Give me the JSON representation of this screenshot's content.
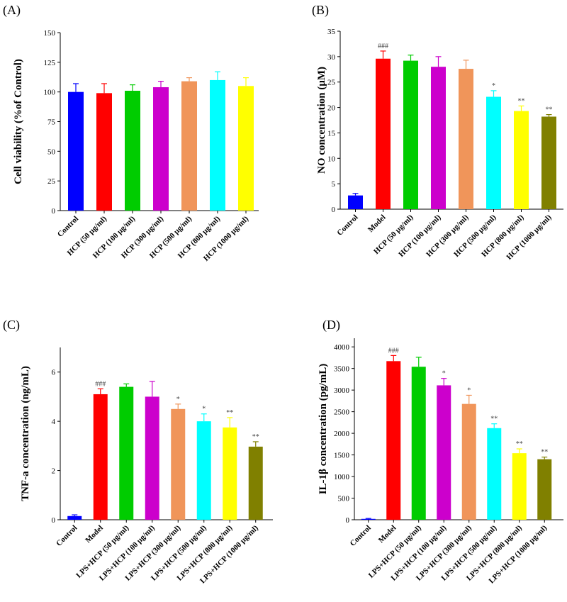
{
  "chart_data": [
    {
      "panel": "(A)",
      "type": "bar",
      "ylabel": "Cell viability (%of Control)",
      "ylim": [
        0,
        150
      ],
      "yticks": [
        0,
        25,
        50,
        75,
        100,
        125,
        150
      ],
      "categories": [
        "Control",
        "HCP (50 μg/ml)",
        "HCP (100 μg/ml)",
        "HCP (300 μg/ml)",
        "HCP (500 μg/ml)",
        "HCP (800 μg/ml)",
        "HCP (1000 μg/ml)"
      ],
      "values": [
        100,
        99,
        101,
        104,
        109,
        110,
        105
      ],
      "errors": [
        7,
        8,
        5,
        5,
        3,
        7,
        7
      ],
      "annotations": [
        "",
        "",
        "",
        "",
        "",
        "",
        ""
      ],
      "colors": [
        "#0000ff",
        "#ff0000",
        "#00cc00",
        "#cc00cc",
        "#f0955a",
        "#00ffff",
        "#ffff00"
      ]
    },
    {
      "panel": "(B)",
      "type": "bar",
      "ylabel": "NO concentration (μM)",
      "ylim": [
        0,
        35
      ],
      "yticks": [
        0,
        5,
        10,
        15,
        20,
        25,
        30,
        35
      ],
      "categories": [
        "Control",
        "Model",
        "HCP (50 μg/ml)",
        "HCP (100 μg/ml)",
        "HCP (300 μg/ml)",
        "HCP (500 μg/ml)",
        "HCP (800 μg/ml)",
        "HCP (1000 μg/ml)"
      ],
      "values": [
        2.7,
        29.6,
        29.2,
        28.0,
        27.6,
        22.1,
        19.3,
        18.2
      ],
      "errors": [
        0.4,
        1.5,
        1.1,
        2.0,
        1.7,
        1.2,
        1.0,
        0.4
      ],
      "annotations": [
        "",
        "###",
        "",
        "",
        "",
        "*",
        "**",
        "**"
      ],
      "colors": [
        "#0000ff",
        "#ff0000",
        "#00cc00",
        "#cc00cc",
        "#f0955a",
        "#00ffff",
        "#ffff00",
        "#808000"
      ]
    },
    {
      "panel": "(C)",
      "type": "bar",
      "ylabel": "TNF-a concentration (ng/mL)",
      "ylim": [
        0,
        7
      ],
      "yticks": [
        0,
        2,
        4,
        6
      ],
      "categories": [
        "Control",
        "Model",
        "LPS+HCP (50 μg/ml)",
        "LPS+HCP (100 μg/ml)",
        "LPS+HCP (300 μg/ml)",
        "LPS+HCP (500 μg/ml)",
        "LPS+HCP (800 μg/ml)",
        "LPS+HCP (1000 μg/ml)"
      ],
      "values": [
        0.15,
        5.1,
        5.4,
        5.0,
        4.5,
        4.0,
        3.75,
        2.97
      ],
      "errors": [
        0.05,
        0.22,
        0.12,
        0.62,
        0.2,
        0.3,
        0.4,
        0.2
      ],
      "annotations": [
        "",
        "###",
        "",
        "",
        "*",
        "*",
        "**",
        "**"
      ],
      "colors": [
        "#0000ff",
        "#ff0000",
        "#00cc00",
        "#cc00cc",
        "#f0955a",
        "#00ffff",
        "#ffff00",
        "#808000"
      ]
    },
    {
      "panel": "(D)",
      "type": "bar",
      "ylabel": "IL-1β concentration (pg/mL)",
      "ylim": [
        0,
        4200
      ],
      "yticks": [
        0,
        500,
        1000,
        1500,
        2000,
        2500,
        3000,
        3500,
        4000
      ],
      "categories": [
        "Control",
        "Model",
        "LPS+HCP (50 μg/ml)",
        "LPS+HCP (100 μg/ml)",
        "LPS+HCP (300 μg/ml)",
        "LPS+HCP (500 μg/ml)",
        "LPS+HCP (800 μg/ml)",
        "LPS+HCP (1000 μg/ml)"
      ],
      "values": [
        20,
        3670,
        3540,
        3110,
        2680,
        2120,
        1540,
        1400
      ],
      "errors": [
        10,
        130,
        220,
        160,
        200,
        100,
        100,
        50
      ],
      "annotations": [
        "",
        "###",
        "",
        "*",
        "*",
        "**",
        "**",
        "**"
      ],
      "colors": [
        "#0000ff",
        "#ff0000",
        "#00cc00",
        "#cc00cc",
        "#f0955a",
        "#00ffff",
        "#ffff00",
        "#808000"
      ]
    }
  ]
}
